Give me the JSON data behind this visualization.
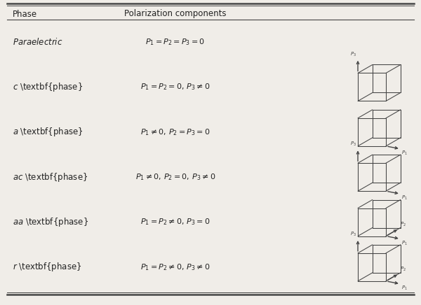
{
  "col_headers": [
    "Phase",
    "Polarization components"
  ],
  "rows": [
    {
      "phase_italic": "Paraelectric",
      "phase_bold": "",
      "formula": "$P_1=P_2=P_3=0$",
      "cube_arrows": [],
      "has_cube": false
    },
    {
      "phase_italic": "c",
      "phase_bold": " phase",
      "formula": "$P_1=P_2=0,\\, P_3\\neq 0$",
      "cube_arrows": [
        "P3_up"
      ],
      "has_cube": true
    },
    {
      "phase_italic": "a",
      "phase_bold": " phase",
      "formula": "$P_1\\neq 0,\\, P_2=P_3=0$",
      "cube_arrows": [
        "P1_right"
      ],
      "has_cube": true
    },
    {
      "phase_italic": "ac",
      "phase_bold": " phase",
      "formula": "$P_1\\neq 0,\\, P_2=0,\\, P_3\\neq 0$",
      "cube_arrows": [
        "P3_up",
        "P1_right"
      ],
      "has_cube": true
    },
    {
      "phase_italic": "aa",
      "phase_bold": " phase",
      "formula": "$P_1=P_2\\neq 0,\\, P_3=0$",
      "cube_arrows": [
        "P2_diag",
        "P1_right"
      ],
      "has_cube": true
    },
    {
      "phase_italic": "r",
      "phase_bold": " phase",
      "formula": "$P_1=P_2\\neq 0,\\, P_3\\neq 0$",
      "cube_arrows": [
        "P3_up",
        "P2_diag",
        "P1_right"
      ],
      "has_cube": true
    }
  ],
  "bg_color": "#f0ede8",
  "text_color": "#222222",
  "line_color": "#444444",
  "fig_w": 6.0,
  "fig_h": 4.36,
  "dpi": 100
}
